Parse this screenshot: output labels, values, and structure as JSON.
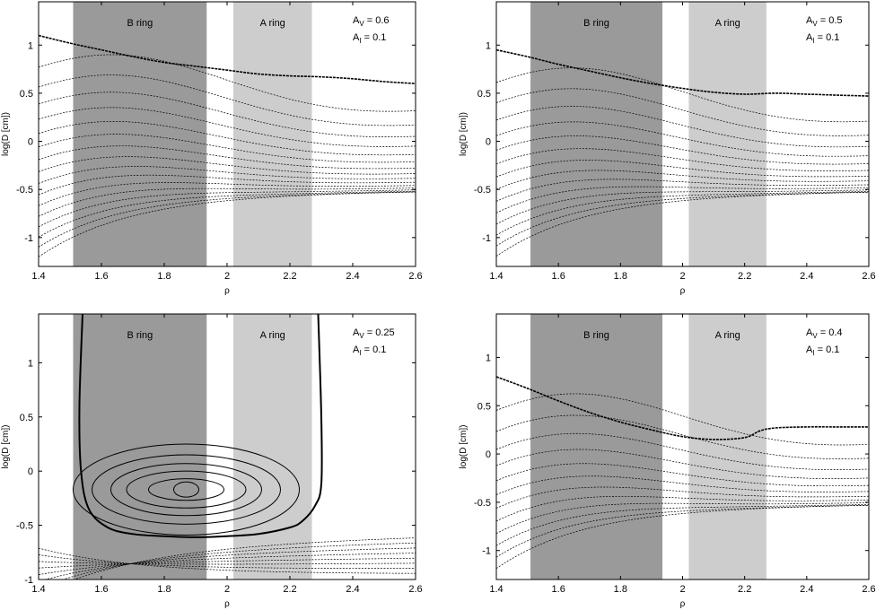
{
  "figure": {
    "ring_labels": {
      "b_ring": "B ring",
      "a_ring": "A ring"
    },
    "colors": {
      "b_ring": "#9a9a9a",
      "a_ring": "#cdcdcd",
      "line": "#000000",
      "background": "#ffffff"
    }
  },
  "chart_data": [
    {
      "type": "contour",
      "panel": "top-left",
      "xlabel": "ρ",
      "ylabel": "log(D [cm])",
      "xlim": [
        1.4,
        2.6
      ],
      "ylim": [
        -1.3,
        1.45
      ],
      "xticks": [
        "1.4",
        "1.6",
        "1.8",
        "2",
        "2.2",
        "2.4",
        "2.6"
      ],
      "yticks": [
        "-1",
        "-0.5",
        "0",
        "0.5",
        "1"
      ],
      "shaded_regions": [
        {
          "label": "B ring",
          "x_range": [
            1.51,
            1.935
          ]
        },
        {
          "label": "A ring",
          "x_range": [
            2.02,
            2.27
          ]
        }
      ],
      "params": {
        "A_V": "0.6",
        "A_I": "0.1"
      },
      "param_text": [
        {
          "prefix": "A",
          "subscript": "V",
          "value": " = 0.6"
        },
        {
          "prefix": "A",
          "subscript": "I",
          "value": " = 0.1"
        }
      ],
      "boundary_curve": {
        "x": [
          1.4,
          1.5,
          1.6,
          1.7,
          1.8,
          1.9,
          2.0,
          2.1,
          2.2,
          2.3,
          2.4,
          2.5,
          2.6
        ],
        "y": [
          1.1,
          1.02,
          0.95,
          0.88,
          0.82,
          0.78,
          0.74,
          0.7,
          0.68,
          0.67,
          0.65,
          0.62,
          0.6
        ]
      },
      "contour_count": 16
    },
    {
      "type": "contour",
      "panel": "top-right",
      "xlabel": "ρ",
      "ylabel": "log(D [cm])",
      "xlim": [
        1.4,
        2.6
      ],
      "ylim": [
        -1.3,
        1.45
      ],
      "xticks": [
        "1.4",
        "1.6",
        "1.8",
        "2",
        "2.2",
        "2.4",
        "2.6"
      ],
      "yticks": [
        "-1",
        "-0.5",
        "0",
        "0.5",
        "1"
      ],
      "shaded_regions": [
        {
          "label": "B ring",
          "x_range": [
            1.51,
            1.935
          ]
        },
        {
          "label": "A ring",
          "x_range": [
            2.02,
            2.27
          ]
        }
      ],
      "params": {
        "A_V": "0.5",
        "A_I": "0.1"
      },
      "param_text": [
        {
          "prefix": "A",
          "subscript": "V",
          "value": " = 0.5"
        },
        {
          "prefix": "A",
          "subscript": "I",
          "value": " = 0.1"
        }
      ],
      "boundary_curve": {
        "x": [
          1.4,
          1.5,
          1.6,
          1.7,
          1.8,
          1.9,
          2.0,
          2.1,
          2.2,
          2.3,
          2.4,
          2.5,
          2.6
        ],
        "y": [
          0.95,
          0.88,
          0.8,
          0.73,
          0.66,
          0.6,
          0.55,
          0.51,
          0.49,
          0.5,
          0.49,
          0.48,
          0.47
        ]
      },
      "contour_count": 14
    },
    {
      "type": "contour",
      "panel": "bottom-left",
      "xlabel": "ρ",
      "ylabel": "log(D [cm])",
      "xlim": [
        1.4,
        2.6
      ],
      "ylim": [
        -1.0,
        1.45
      ],
      "xticks": [
        "1.4",
        "1.6",
        "1.8",
        "2",
        "2.2",
        "2.4",
        "2.6"
      ],
      "yticks": [
        "-1",
        "-0.5",
        "0",
        "0.5",
        "1"
      ],
      "shaded_regions": [
        {
          "label": "B ring",
          "x_range": [
            1.51,
            1.935
          ]
        },
        {
          "label": "A ring",
          "x_range": [
            2.02,
            2.27
          ]
        }
      ],
      "params": {
        "A_V": "0.25",
        "A_I": "0.1"
      },
      "param_text": [
        {
          "prefix": "A",
          "subscript": "V",
          "value": " = 0.25"
        },
        {
          "prefix": "A",
          "subscript": "I",
          "value": " = 0.1"
        }
      ],
      "boundary_curve": {
        "x": [
          1.54,
          1.53,
          1.535,
          1.56,
          1.62,
          1.7,
          1.8,
          1.9,
          2.0,
          2.1,
          2.2,
          2.24,
          2.28,
          2.3,
          2.3,
          2.29
        ],
        "y": [
          1.45,
          0.6,
          0.0,
          -0.35,
          -0.52,
          -0.58,
          -0.6,
          -0.61,
          -0.6,
          -0.58,
          -0.52,
          -0.46,
          -0.32,
          -0.12,
          0.5,
          1.45
        ]
      },
      "closed_contour_centers": {
        "x": [
          1.87
        ],
        "y": [
          -0.17
        ]
      },
      "contour_count": 12
    },
    {
      "type": "contour",
      "panel": "bottom-right",
      "xlabel": "ρ",
      "ylabel": "log(D [cm])",
      "xlim": [
        1.4,
        2.6
      ],
      "ylim": [
        -1.3,
        1.45
      ],
      "xticks": [
        "1.4",
        "1.6",
        "1.8",
        "2",
        "2.2",
        "2.4",
        "2.6"
      ],
      "yticks": [
        "-1",
        "-0.5",
        "0",
        "0.5",
        "1"
      ],
      "shaded_regions": [
        {
          "label": "B ring",
          "x_range": [
            1.51,
            1.935
          ]
        },
        {
          "label": "A ring",
          "x_range": [
            2.02,
            2.27
          ]
        }
      ],
      "params": {
        "A_V": "0.4",
        "A_I": "0.1"
      },
      "param_text": [
        {
          "prefix": "A",
          "subscript": "V",
          "value": " = 0.4"
        },
        {
          "prefix": "A",
          "subscript": "I",
          "value": " = 0.1"
        }
      ],
      "boundary_curve": {
        "x": [
          1.4,
          1.5,
          1.6,
          1.7,
          1.8,
          1.9,
          2.0,
          2.1,
          2.2,
          2.25,
          2.3,
          2.4,
          2.5,
          2.6
        ],
        "y": [
          0.8,
          0.68,
          0.55,
          0.43,
          0.33,
          0.25,
          0.18,
          0.15,
          0.17,
          0.24,
          0.27,
          0.28,
          0.28,
          0.28
        ]
      },
      "contour_count": 12
    }
  ]
}
